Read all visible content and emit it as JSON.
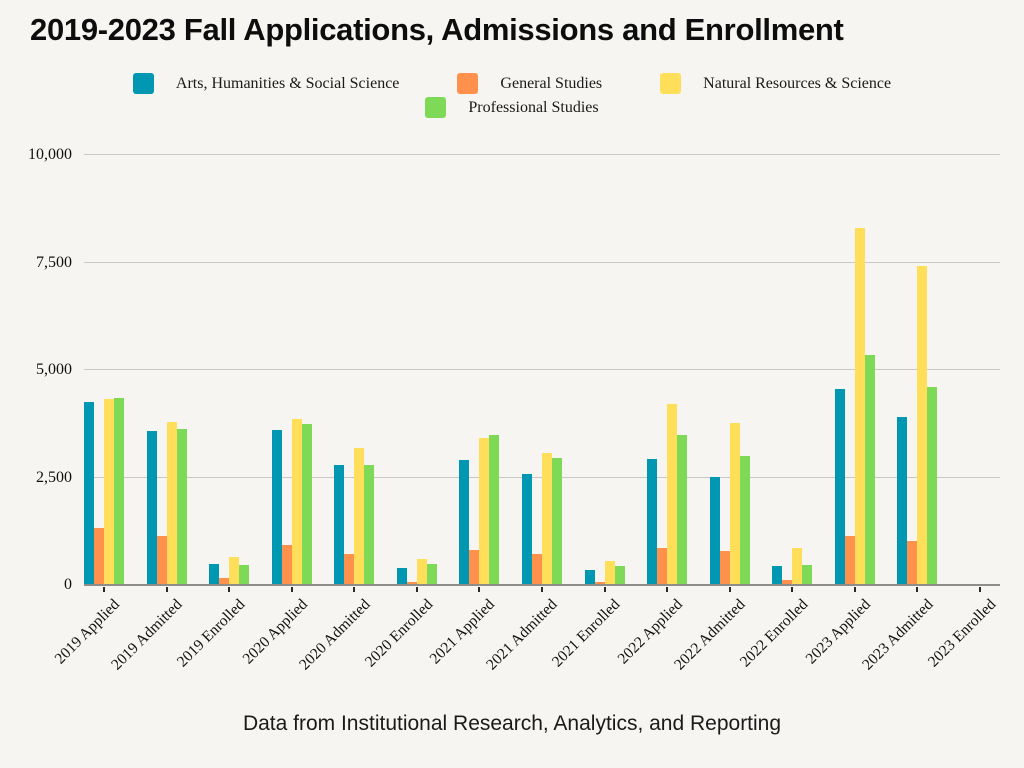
{
  "title": "2019-2023 Fall Applications, Admissions and Enrollment",
  "footer": "Data from Institutional Research, Analytics, and Reporting",
  "colors": {
    "arts": "#0097B2",
    "general": "#FF914D",
    "natural": "#FFDE59",
    "professional": "#7ED957",
    "gridline": "#c9c8c5",
    "axis_line": "#8e8d8a",
    "background": "#f6f5f1"
  },
  "chart_data": {
    "type": "bar",
    "title": "2019-2023 Fall Applications, Admissions and Enrollment",
    "categories": [
      "2019 Applied",
      "2019 Admitted",
      "2019 Enrolled",
      "2020 Applied",
      "2020 Admitted",
      "2020 Enrolled",
      "2021 Applied",
      "2021 Admitted",
      "2021 Enrolled",
      "2022 Applied",
      "2022 Admitted",
      "2022 Enrolled",
      "2023 Applied",
      "2023 Admitted",
      "2023 Enrolled"
    ],
    "series": [
      {
        "name": "Arts, Humanities & Social Science",
        "color": "#0097B2",
        "values": [
          4250,
          3580,
          490,
          3600,
          2790,
          400,
          2900,
          2580,
          350,
          2930,
          2520,
          440,
          4550,
          3910,
          0
        ]
      },
      {
        "name": "General Studies",
        "color": "#FF914D",
        "values": [
          1330,
          1140,
          160,
          920,
          720,
          80,
          810,
          720,
          70,
          850,
          780,
          120,
          1150,
          1030,
          0
        ]
      },
      {
        "name": "Natural Resources & Science",
        "color": "#FFDE59",
        "values": [
          4320,
          3790,
          660,
          3870,
          3180,
          600,
          3410,
          3080,
          550,
          4200,
          3770,
          870,
          8300,
          7420,
          0
        ]
      },
      {
        "name": "Professional Studies",
        "color": "#7ED957",
        "values": [
          4350,
          3630,
          470,
          3750,
          2800,
          480,
          3500,
          2960,
          450,
          3500,
          3010,
          470,
          5340,
          4610,
          0
        ]
      }
    ],
    "xlabel": "",
    "ylabel": "",
    "ylim": [
      0,
      10000
    ],
    "yticks": [
      0,
      2500,
      5000,
      7500,
      10000
    ],
    "ytick_labels": [
      "0",
      "2,500",
      "5,000",
      "7,500",
      "10,000"
    ],
    "grid": true,
    "legend_position": "top"
  }
}
